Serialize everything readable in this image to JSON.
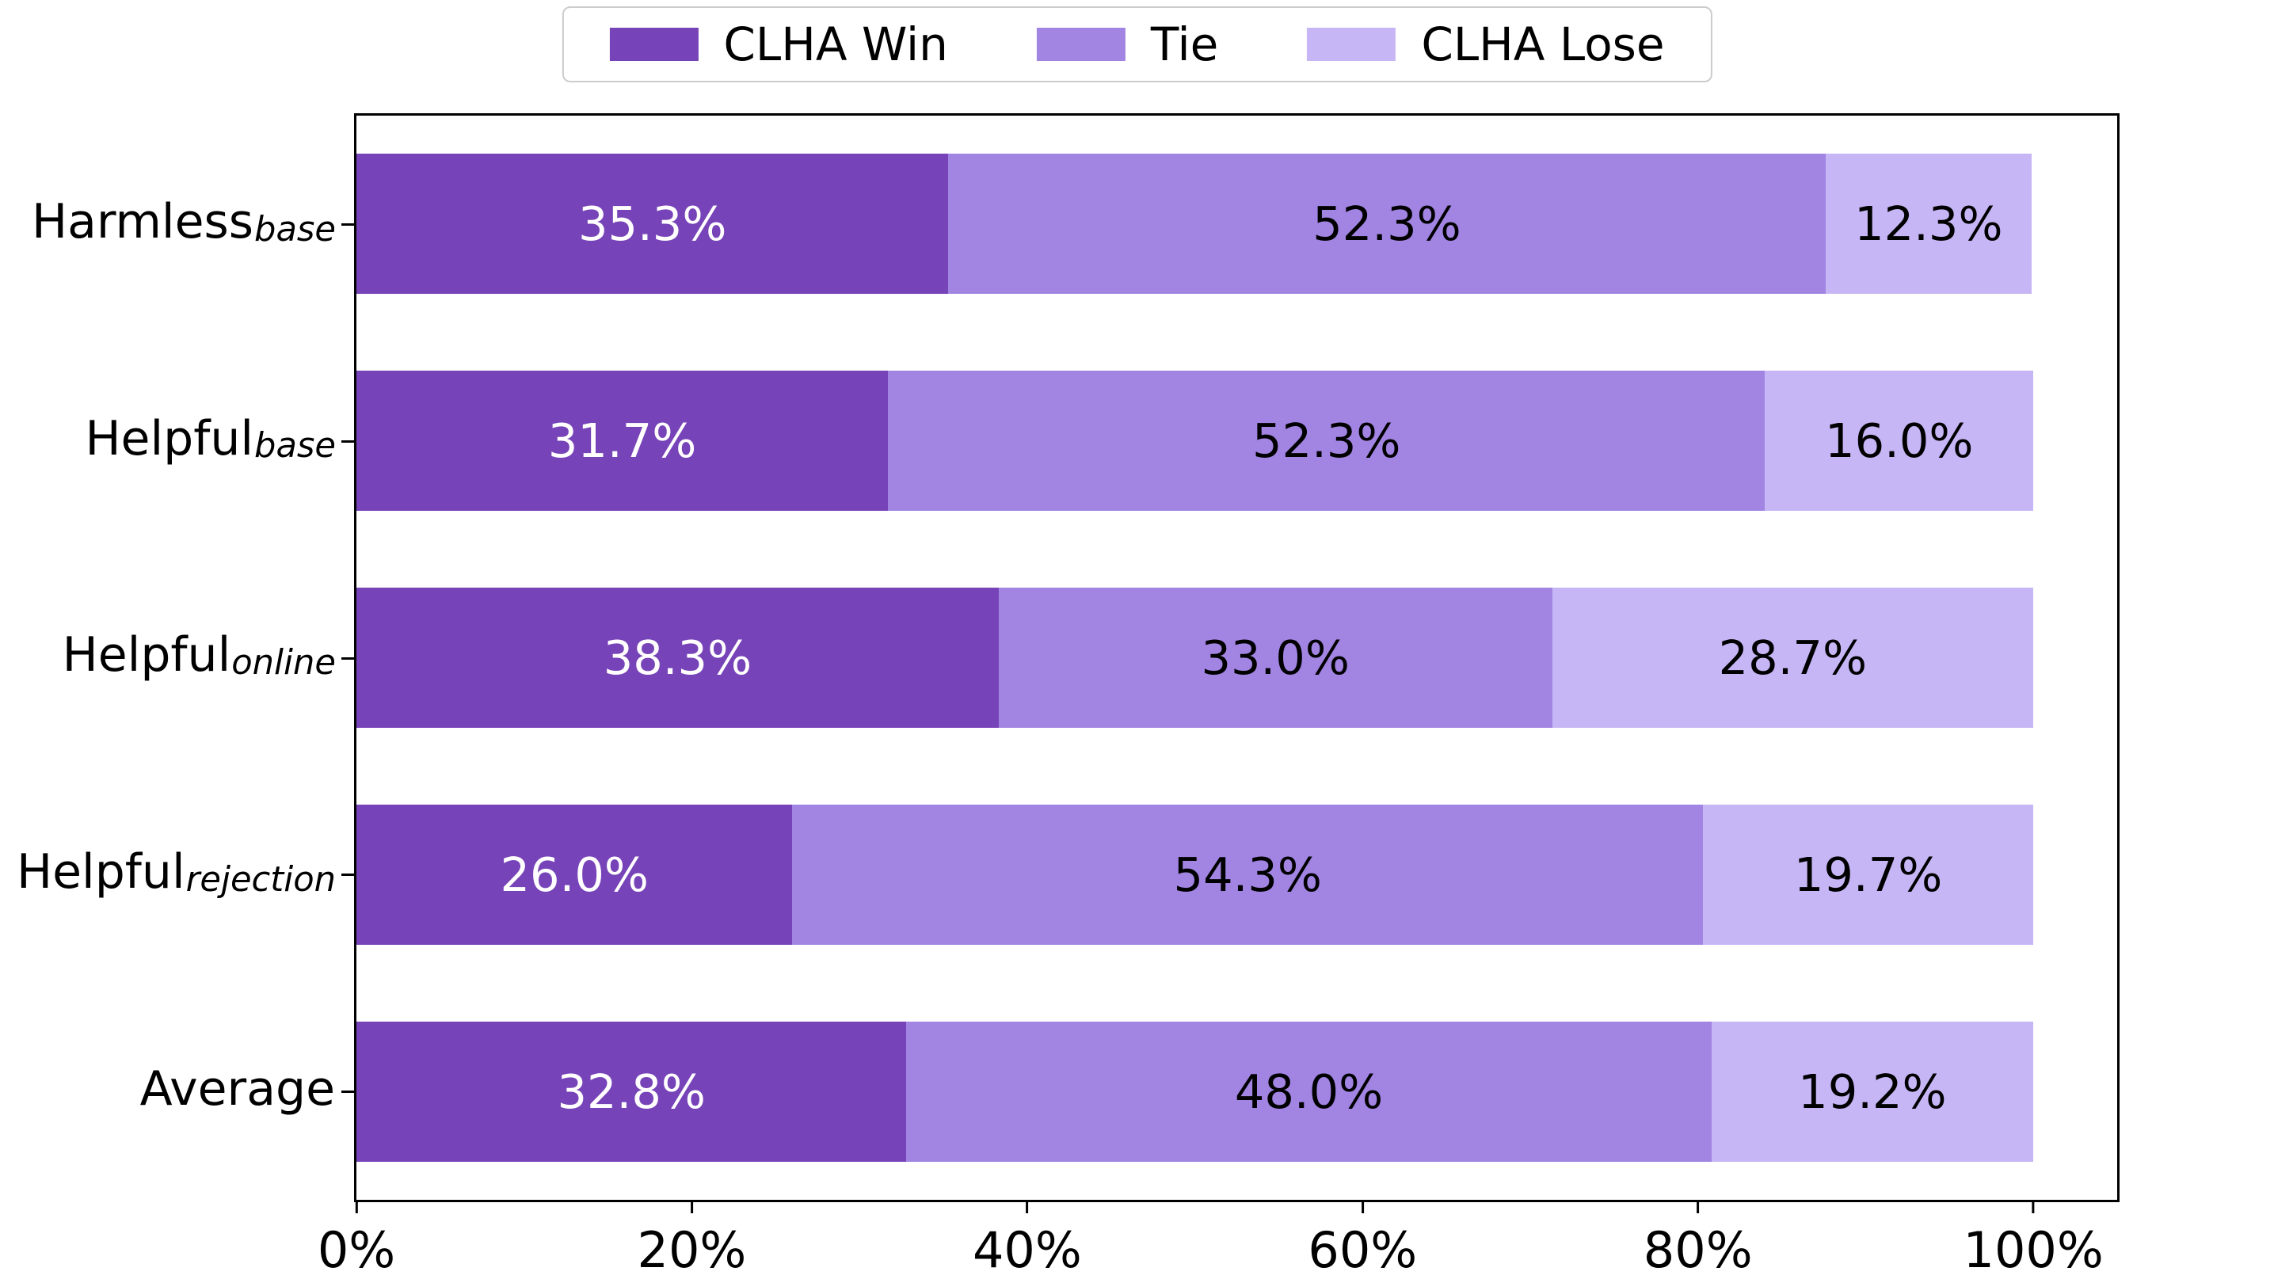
{
  "legend": {
    "items": [
      {
        "label": "CLHA Win",
        "color": "#7743B8"
      },
      {
        "label": "Tie",
        "color": "#A284E3"
      },
      {
        "label": "CLHA Lose",
        "color": "#C7B6F5"
      }
    ]
  },
  "rows": [
    {
      "category": "Harmless",
      "subscript": "base",
      "win_label": "35.3%",
      "tie_label": "52.3%",
      "lose_label": "12.3%"
    },
    {
      "category": "Helpful",
      "subscript": "base",
      "win_label": "31.7%",
      "tie_label": "52.3%",
      "lose_label": "16.0%"
    },
    {
      "category": "Helpful",
      "subscript": "online",
      "win_label": "38.3%",
      "tie_label": "33.0%",
      "lose_label": "28.7%"
    },
    {
      "category": "Helpful",
      "subscript": "rejection",
      "win_label": "26.0%",
      "tie_label": "54.3%",
      "lose_label": "19.7%"
    },
    {
      "category": "Average",
      "subscript": "",
      "win_label": "32.8%",
      "tie_label": "48.0%",
      "lose_label": "19.2%"
    }
  ],
  "x_axis": {
    "ticks": [
      "0%",
      "20%",
      "40%",
      "60%",
      "80%",
      "100%"
    ]
  },
  "chart_data": {
    "type": "bar",
    "orientation": "horizontal",
    "stacked": true,
    "title": "",
    "xlabel": "",
    "ylabel": "",
    "categories": [
      "Harmless_base",
      "Helpful_base",
      "Helpful_online",
      "Helpful_rejection",
      "Average"
    ],
    "series": [
      {
        "name": "CLHA Win",
        "values": [
          35.3,
          31.7,
          38.3,
          26.0,
          32.8
        ],
        "color": "#7743B8",
        "label_color": "#ffffff"
      },
      {
        "name": "Tie",
        "values": [
          52.3,
          52.3,
          33.0,
          54.3,
          48.0
        ],
        "color": "#A284E3",
        "label_color": "#000000"
      },
      {
        "name": "CLHA Lose",
        "values": [
          12.3,
          16.0,
          28.7,
          19.7,
          19.2
        ],
        "color": "#C7B6F5",
        "label_color": "#000000"
      }
    ],
    "x_tick_values": [
      0,
      20,
      40,
      60,
      80,
      100
    ],
    "xlim": [
      0,
      105
    ],
    "grid": false,
    "legend_position": "top-center",
    "bar_labels": true
  }
}
